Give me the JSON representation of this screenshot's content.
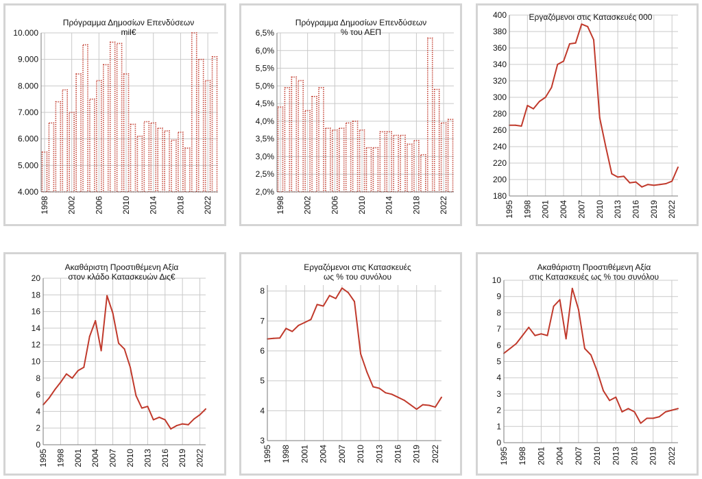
{
  "colors": {
    "series": "#c0392b",
    "grid": "#c9c9c9",
    "axis": "#7a7a7a",
    "border": "#d4d4d4"
  },
  "chart_data": [
    {
      "type": "bar",
      "title": "Πρόγραμμα Δημοσίων Επενδύσεων",
      "subtitle": "mil€",
      "bar_style": "dotted",
      "categories": [
        "1998",
        "1999",
        "2000",
        "2001",
        "2002",
        "2003",
        "2004",
        "2005",
        "2006",
        "2007",
        "2008",
        "2009",
        "2010",
        "2011",
        "2012",
        "2013",
        "2014",
        "2015",
        "2016",
        "2017",
        "2018",
        "2019",
        "2020",
        "2021",
        "2022",
        "2023"
      ],
      "values": [
        5500,
        6600,
        7400,
        7850,
        7000,
        8450,
        9550,
        7500,
        8200,
        8800,
        9650,
        9600,
        8450,
        6550,
        6100,
        6650,
        6600,
        6400,
        6300,
        5950,
        6250,
        5650,
        10000,
        9000,
        8200,
        9100
      ],
      "ylim": [
        4000,
        10000
      ],
      "yticks": [
        4000,
        5000,
        6000,
        7000,
        8000,
        9000,
        10000
      ],
      "ytick_labels": [
        "4.000",
        "5.000",
        "6.000",
        "7.000",
        "8.000",
        "9.000",
        "10.000"
      ],
      "xtick_labels": [
        "1998",
        "2002",
        "2006",
        "2010",
        "2014",
        "2018",
        "2022"
      ],
      "xlabel": "",
      "ylabel": ""
    },
    {
      "type": "bar",
      "title": "Πρόγραμμα Δημοσίων Επενδύσεων",
      "subtitle": "% του ΑΕΠ",
      "bar_style": "dotted",
      "categories": [
        "1998",
        "1999",
        "2000",
        "2001",
        "2002",
        "2003",
        "2004",
        "2005",
        "2006",
        "2007",
        "2008",
        "2009",
        "2010",
        "2011",
        "2012",
        "2013",
        "2014",
        "2015",
        "2016",
        "2017",
        "2018",
        "2019",
        "2020",
        "2021",
        "2022",
        "2023"
      ],
      "values": [
        4.4,
        4.95,
        5.25,
        5.15,
        4.3,
        4.7,
        4.95,
        3.8,
        3.75,
        3.8,
        3.95,
        4.0,
        3.75,
        3.25,
        3.25,
        3.7,
        3.7,
        3.6,
        3.6,
        3.35,
        3.45,
        3.05,
        6.35,
        4.9,
        3.95,
        4.05
      ],
      "ylim": [
        2.0,
        6.5
      ],
      "yticks": [
        2.0,
        2.5,
        3.0,
        3.5,
        4.0,
        4.5,
        5.0,
        5.5,
        6.0,
        6.5
      ],
      "ytick_labels": [
        "2,0%",
        "2,5%",
        "3,0%",
        "3,5%",
        "4,0%",
        "4,5%",
        "5,0%",
        "5,5%",
        "6,0%",
        "6,5%"
      ],
      "xtick_labels": [
        "1998",
        "2002",
        "2006",
        "2010",
        "2014",
        "2018",
        "2022"
      ],
      "xlabel": "",
      "ylabel": ""
    },
    {
      "type": "line",
      "title": "Εργαζόμενοι στις Κατασκευές 000",
      "subtitle": "",
      "x": [
        1995,
        1996,
        1997,
        1998,
        1999,
        2000,
        2001,
        2002,
        2003,
        2004,
        2005,
        2006,
        2007,
        2008,
        2009,
        2010,
        2011,
        2012,
        2013,
        2014,
        2015,
        2016,
        2017,
        2018,
        2019,
        2020,
        2021,
        2022,
        2023
      ],
      "values": [
        266,
        266,
        265,
        290,
        286,
        295,
        300,
        312,
        340,
        344,
        365,
        366,
        389,
        386,
        370,
        275,
        240,
        207,
        203,
        204,
        196,
        197,
        191,
        194,
        193,
        194,
        195,
        198,
        215
      ],
      "ylim": [
        180,
        400
      ],
      "yticks": [
        180,
        200,
        220,
        240,
        260,
        280,
        300,
        320,
        340,
        360,
        380,
        400
      ],
      "ytick_labels": [
        "180",
        "200",
        "220",
        "240",
        "260",
        "280",
        "300",
        "320",
        "340",
        "360",
        "380",
        "400"
      ],
      "xtick_labels": [
        "1995",
        "1998",
        "2001",
        "2004",
        "2007",
        "2010",
        "2013",
        "2016",
        "2019",
        "2022"
      ],
      "xlabel": "",
      "ylabel": ""
    },
    {
      "type": "line",
      "title": "Ακαθάριστη Προστιθέμενη Αξία",
      "subtitle": "στον κλάδο Κατασκευών  Δις€",
      "x": [
        1995,
        1996,
        1997,
        1998,
        1999,
        2000,
        2001,
        2002,
        2003,
        2004,
        2005,
        2006,
        2007,
        2008,
        2009,
        2010,
        2011,
        2012,
        2013,
        2014,
        2015,
        2016,
        2017,
        2018,
        2019,
        2020,
        2021,
        2022,
        2023
      ],
      "values": [
        4.8,
        5.6,
        6.6,
        7.5,
        8.5,
        8.0,
        8.9,
        9.3,
        13.0,
        14.9,
        11.3,
        17.9,
        15.8,
        12.2,
        11.5,
        9.3,
        5.9,
        4.4,
        4.6,
        3.0,
        3.3,
        3.0,
        1.9,
        2.3,
        2.5,
        2.4,
        3.1,
        3.6,
        4.3
      ],
      "ylim": [
        0,
        20
      ],
      "yticks": [
        0,
        2,
        4,
        6,
        8,
        10,
        12,
        14,
        16,
        18,
        20
      ],
      "ytick_labels": [
        "0",
        "2",
        "4",
        "6",
        "8",
        "10",
        "12",
        "14",
        "16",
        "18",
        "20"
      ],
      "xtick_labels": [
        "1995",
        "1998",
        "2001",
        "2004",
        "2007",
        "2010",
        "2013",
        "2016",
        "2019",
        "2022"
      ],
      "xlabel": "",
      "ylabel": ""
    },
    {
      "type": "line",
      "title": "Εργαζόμενοι στις Κατασκευές",
      "subtitle": "ως % του συνόλου",
      "x": [
        1995,
        1996,
        1997,
        1998,
        1999,
        2000,
        2001,
        2002,
        2003,
        2004,
        2005,
        2006,
        2007,
        2008,
        2009,
        2010,
        2011,
        2012,
        2013,
        2014,
        2015,
        2016,
        2017,
        2018,
        2019,
        2020,
        2021,
        2022,
        2023
      ],
      "values": [
        6.4,
        6.42,
        6.43,
        6.75,
        6.65,
        6.85,
        6.95,
        7.05,
        7.55,
        7.5,
        7.85,
        7.75,
        8.1,
        7.95,
        7.65,
        5.9,
        5.3,
        4.8,
        4.75,
        4.6,
        4.55,
        4.45,
        4.35,
        4.2,
        4.05,
        4.2,
        4.18,
        4.12,
        4.45
      ],
      "ylim": [
        3,
        8.2
      ],
      "yticks": [
        3,
        4,
        5,
        6,
        7,
        8
      ],
      "ytick_labels": [
        "3",
        "4",
        "5",
        "6",
        "7",
        "8"
      ],
      "xtick_labels": [
        "1995",
        "1998",
        "2001",
        "2004",
        "2007",
        "2010",
        "2013",
        "2016",
        "2019",
        "2022"
      ],
      "xlabel": "",
      "ylabel": ""
    },
    {
      "type": "line",
      "title": "Ακαθάριστη Προστιθέμενη Αξία",
      "subtitle": "στις Κατασκευές ως % του συνόλου",
      "x": [
        1995,
        1996,
        1997,
        1998,
        1999,
        2000,
        2001,
        2002,
        2003,
        2004,
        2005,
        2006,
        2007,
        2008,
        2009,
        2010,
        2011,
        2012,
        2013,
        2014,
        2015,
        2016,
        2017,
        2018,
        2019,
        2020,
        2021,
        2022,
        2023
      ],
      "values": [
        5.5,
        5.8,
        6.1,
        6.6,
        7.1,
        6.6,
        6.7,
        6.6,
        8.4,
        8.8,
        6.4,
        9.5,
        8.2,
        5.8,
        5.4,
        4.4,
        3.2,
        2.6,
        2.8,
        1.9,
        2.1,
        1.9,
        1.2,
        1.5,
        1.5,
        1.6,
        1.9,
        2.0,
        2.1
      ],
      "ylim": [
        0,
        10
      ],
      "yticks": [
        0,
        1,
        2,
        3,
        4,
        5,
        6,
        7,
        8,
        9,
        10
      ],
      "ytick_labels": [
        "0",
        "1",
        "2",
        "3",
        "4",
        "5",
        "6",
        "7",
        "8",
        "9",
        "10"
      ],
      "xtick_labels": [
        "1995",
        "1998",
        "2001",
        "2004",
        "2007",
        "2010",
        "2013",
        "2016",
        "2019",
        "2022"
      ],
      "xlabel": "",
      "ylabel": ""
    }
  ]
}
